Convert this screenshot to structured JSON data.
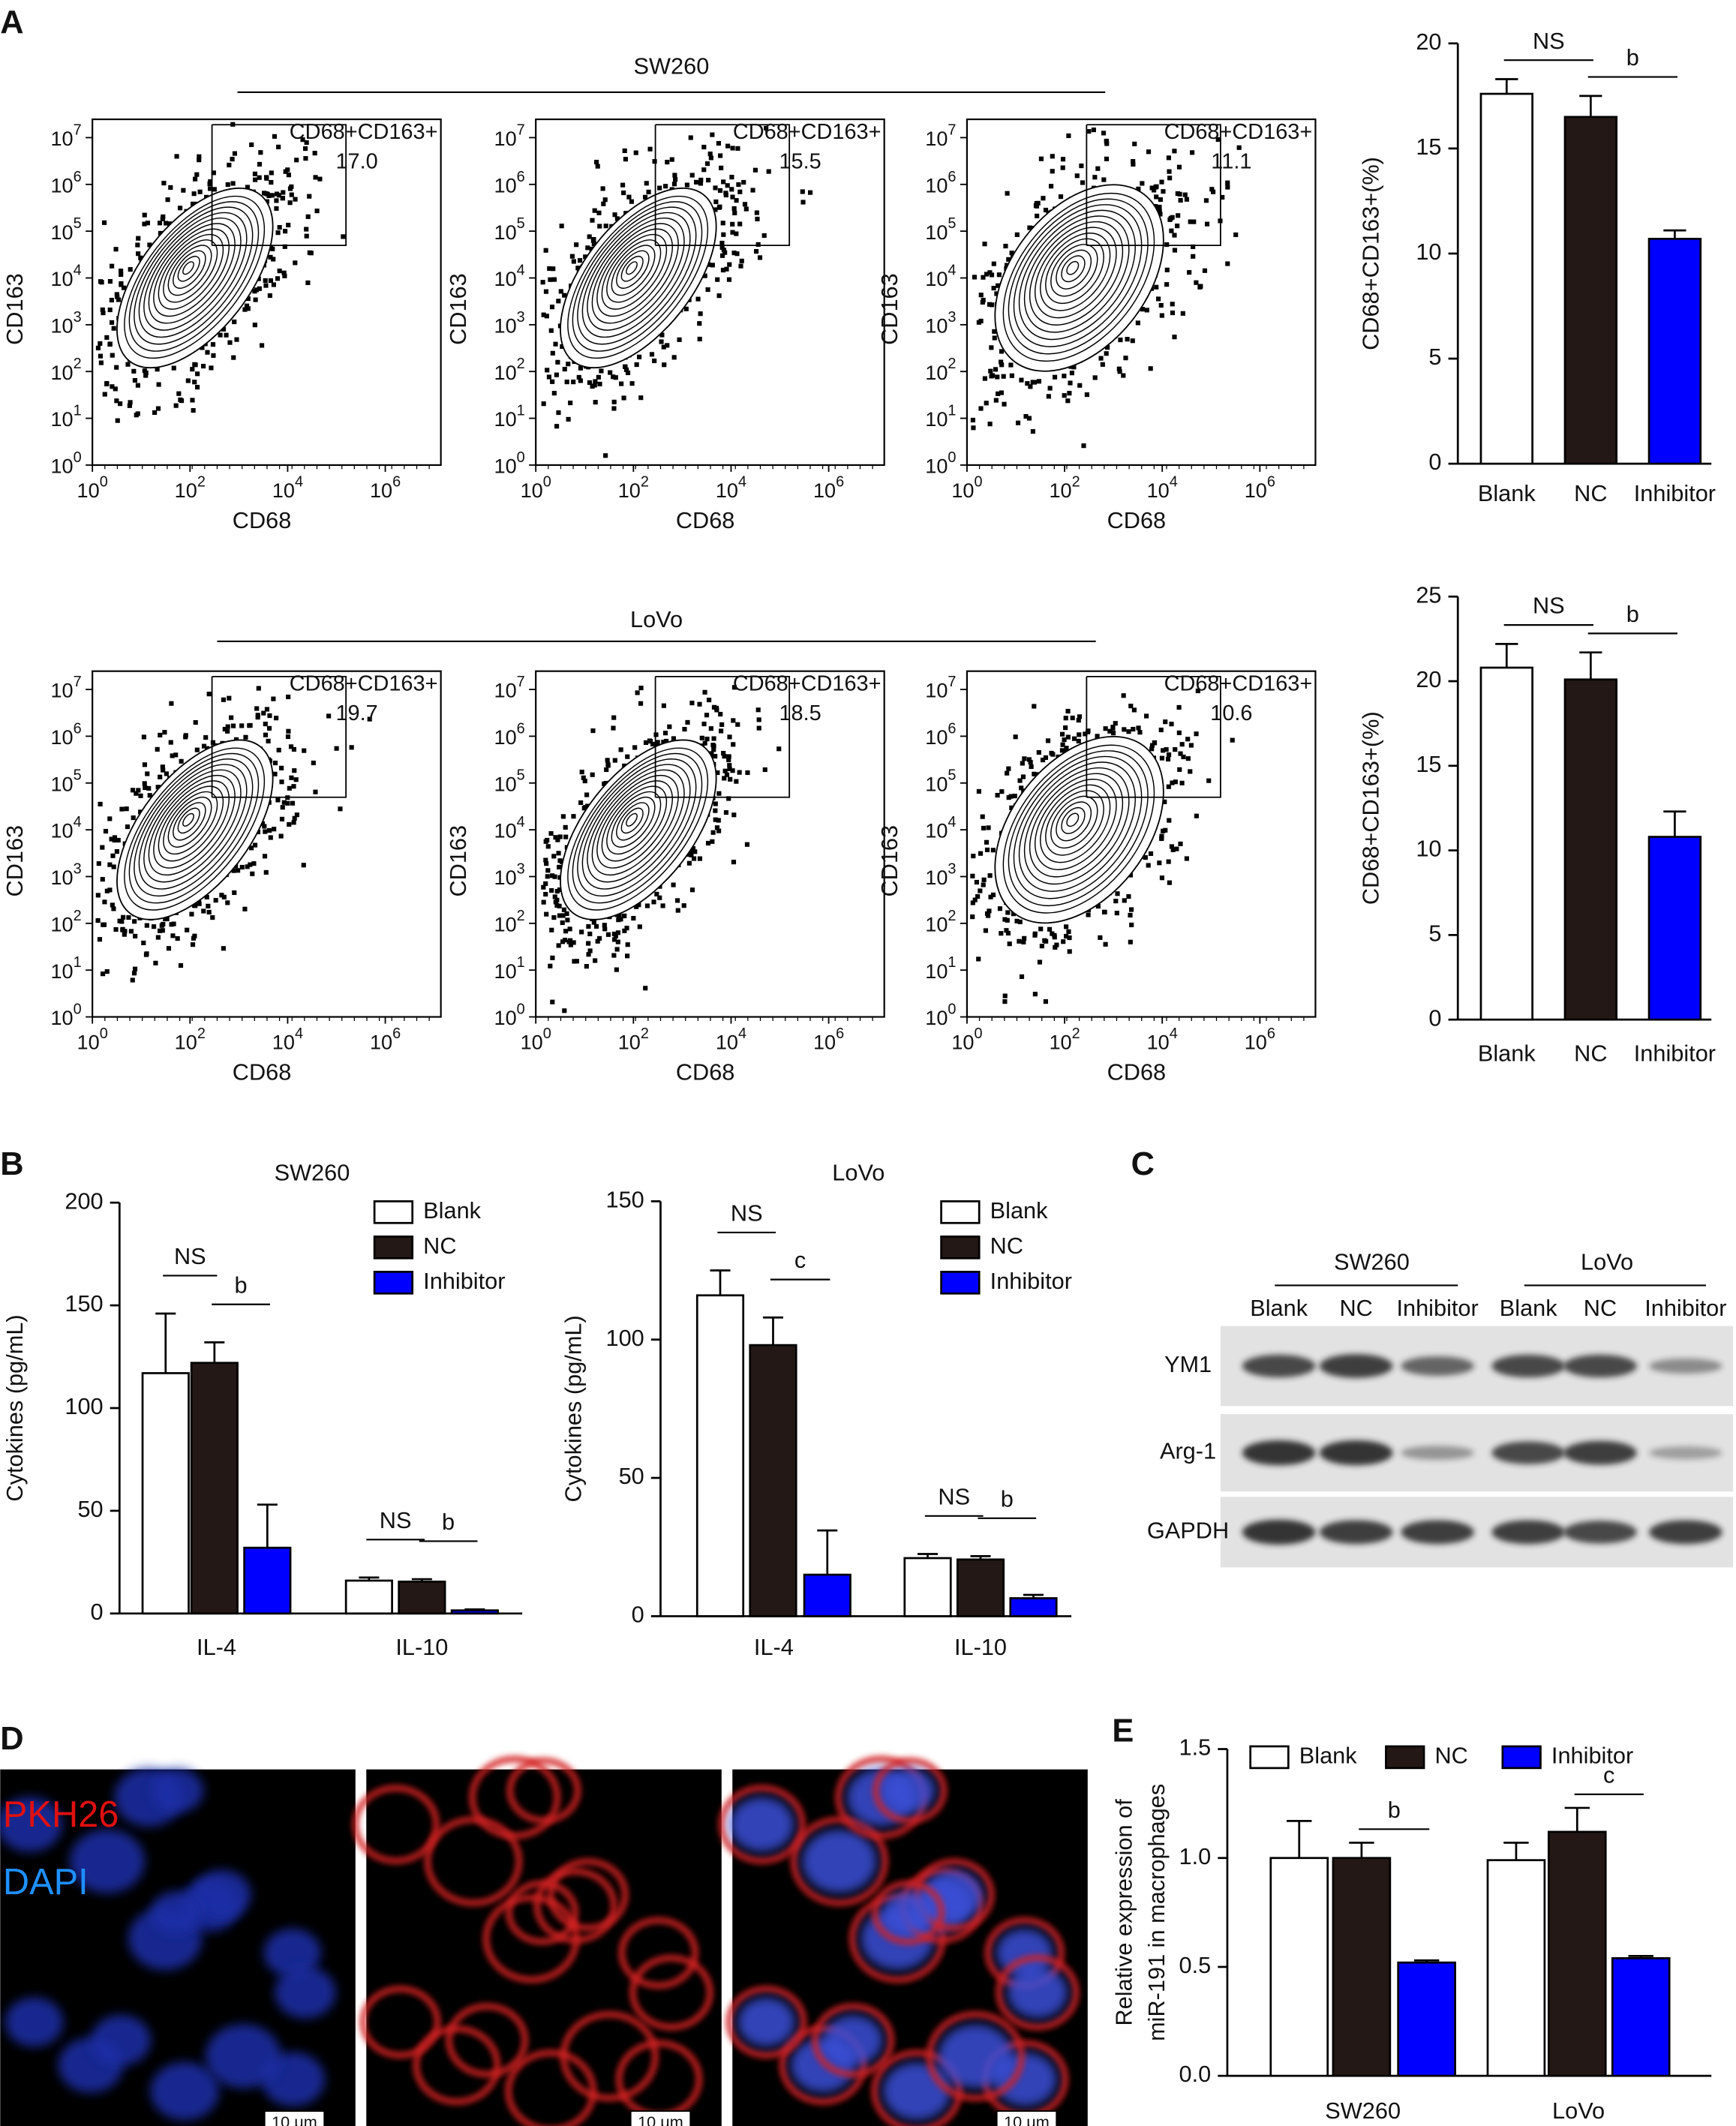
{
  "panel_labels": [
    "A",
    "B",
    "C",
    "D",
    "E"
  ],
  "flow": {
    "axes": {
      "xlabel": "CD68",
      "ylabel": "CD163",
      "tick_base": "10",
      "xtick_exponents": [
        "0",
        "2",
        "4",
        "6"
      ],
      "ytick_exponents": [
        "0",
        "1",
        "2",
        "3",
        "4",
        "5",
        "6",
        "7"
      ]
    },
    "rows": [
      {
        "title": "SW260",
        "plots": [
          {
            "gate_label": "CD68+CD163+",
            "gate_value": "17.0"
          },
          {
            "gate_label": "CD68+CD163+",
            "gate_value": "15.5"
          },
          {
            "gate_label": "CD68+CD163+",
            "gate_value": "11.1"
          }
        ]
      },
      {
        "title": "LoVo",
        "plots": [
          {
            "gate_label": "CD68+CD163+",
            "gate_value": "19.7"
          },
          {
            "gate_label": "CD68+CD163+",
            "gate_value": "18.5"
          },
          {
            "gate_label": "CD68+CD163+",
            "gate_value": "10.6"
          }
        ]
      }
    ]
  },
  "blot": {
    "groups": [
      {
        "name": "SW260",
        "lanes": [
          "Blank",
          "NC",
          "Inhibitor"
        ]
      },
      {
        "name": "LoVo",
        "lanes": [
          "Blank",
          "NC",
          "Inhibitor"
        ]
      }
    ],
    "rows": [
      "YM1",
      "Arg-1",
      "GAPDH"
    ]
  },
  "micrograph": {
    "labels": [
      "PKH26",
      "DAPI"
    ],
    "scale_bar": "10 μm"
  },
  "chart_data": [
    {
      "type": "bar",
      "categories": [
        "Blank",
        "NC",
        "Inhibitor"
      ],
      "values": [
        17.6,
        16.5,
        10.7
      ],
      "errors": [
        0.7,
        1.0,
        0.4
      ],
      "colors": [
        "#ffffff",
        "#231815",
        "#0000ff"
      ],
      "ylabel": "CD68+CD163+(%)",
      "ylim": [
        0,
        20
      ],
      "yticks": [
        0,
        5,
        10,
        15,
        20
      ],
      "annotations": [
        "NS",
        "b"
      ]
    },
    {
      "type": "bar",
      "categories": [
        "Blank",
        "NC",
        "Inhibitor"
      ],
      "values": [
        20.8,
        20.1,
        10.8
      ],
      "errors": [
        1.4,
        1.6,
        1.5
      ],
      "colors": [
        "#ffffff",
        "#231815",
        "#0000ff"
      ],
      "ylabel": "CD68+CD163+(%)",
      "ylim": [
        0,
        25
      ],
      "yticks": [
        0,
        5,
        10,
        15,
        20,
        25
      ],
      "annotations": [
        "NS",
        "b"
      ]
    },
    {
      "type": "bar",
      "title": "SW260",
      "categories": [
        "IL-4",
        "IL-10"
      ],
      "series": [
        {
          "name": "Blank",
          "color": "#ffffff",
          "values": [
            117,
            16
          ],
          "errors": [
            29,
            1.5
          ]
        },
        {
          "name": "NC",
          "color": "#231815",
          "values": [
            122,
            15.5
          ],
          "errors": [
            10,
            1.2
          ]
        },
        {
          "name": "Inhibitor",
          "color": "#0000ff",
          "values": [
            32,
            1.5
          ],
          "errors": [
            21,
            0.5
          ]
        }
      ],
      "ylabel": "Cytokines (pg/mL)",
      "ylim": [
        0,
        200
      ],
      "yticks": [
        0,
        50,
        100,
        150,
        200
      ],
      "annotations": [
        "NS",
        "b",
        "NS",
        "b"
      ]
    },
    {
      "type": "bar",
      "title": "LoVo",
      "categories": [
        "IL-4",
        "IL-10"
      ],
      "series": [
        {
          "name": "Blank",
          "color": "#ffffff",
          "values": [
            116,
            21
          ],
          "errors": [
            9,
            1.5
          ]
        },
        {
          "name": "NC",
          "color": "#231815",
          "values": [
            98,
            20.5
          ],
          "errors": [
            10,
            1.2
          ]
        },
        {
          "name": "Inhibitor",
          "color": "#0000ff",
          "values": [
            15,
            6.5
          ],
          "errors": [
            16,
            1.2
          ]
        }
      ],
      "ylabel": "Cytokines (pg/mL)",
      "ylim": [
        0,
        150
      ],
      "yticks": [
        0,
        50,
        100,
        150
      ],
      "annotations": [
        "NS",
        "c",
        "NS",
        "b"
      ]
    },
    {
      "type": "bar",
      "categories": [
        "SW260",
        "LoVo"
      ],
      "series": [
        {
          "name": "Blank",
          "color": "#ffffff",
          "values": [
            1.0,
            0.99
          ],
          "errors": [
            0.17,
            0.08
          ]
        },
        {
          "name": "NC",
          "color": "#231815",
          "values": [
            1.0,
            1.12
          ],
          "errors": [
            0.07,
            0.11
          ]
        },
        {
          "name": "Inhibitor",
          "color": "#0000ff",
          "values": [
            0.52,
            0.54
          ],
          "errors": [
            0.01,
            0.01
          ]
        }
      ],
      "ylabel": [
        "Relative expression of",
        "miR-191 in macrophages"
      ],
      "ylim": [
        0,
        1.5
      ],
      "yticks": [
        {
          "value": 0,
          "label": "0.0"
        },
        0.5,
        {
          "value": 1,
          "label": "1.0"
        },
        1.5
      ],
      "annotations": [
        "b",
        "c"
      ]
    }
  ]
}
